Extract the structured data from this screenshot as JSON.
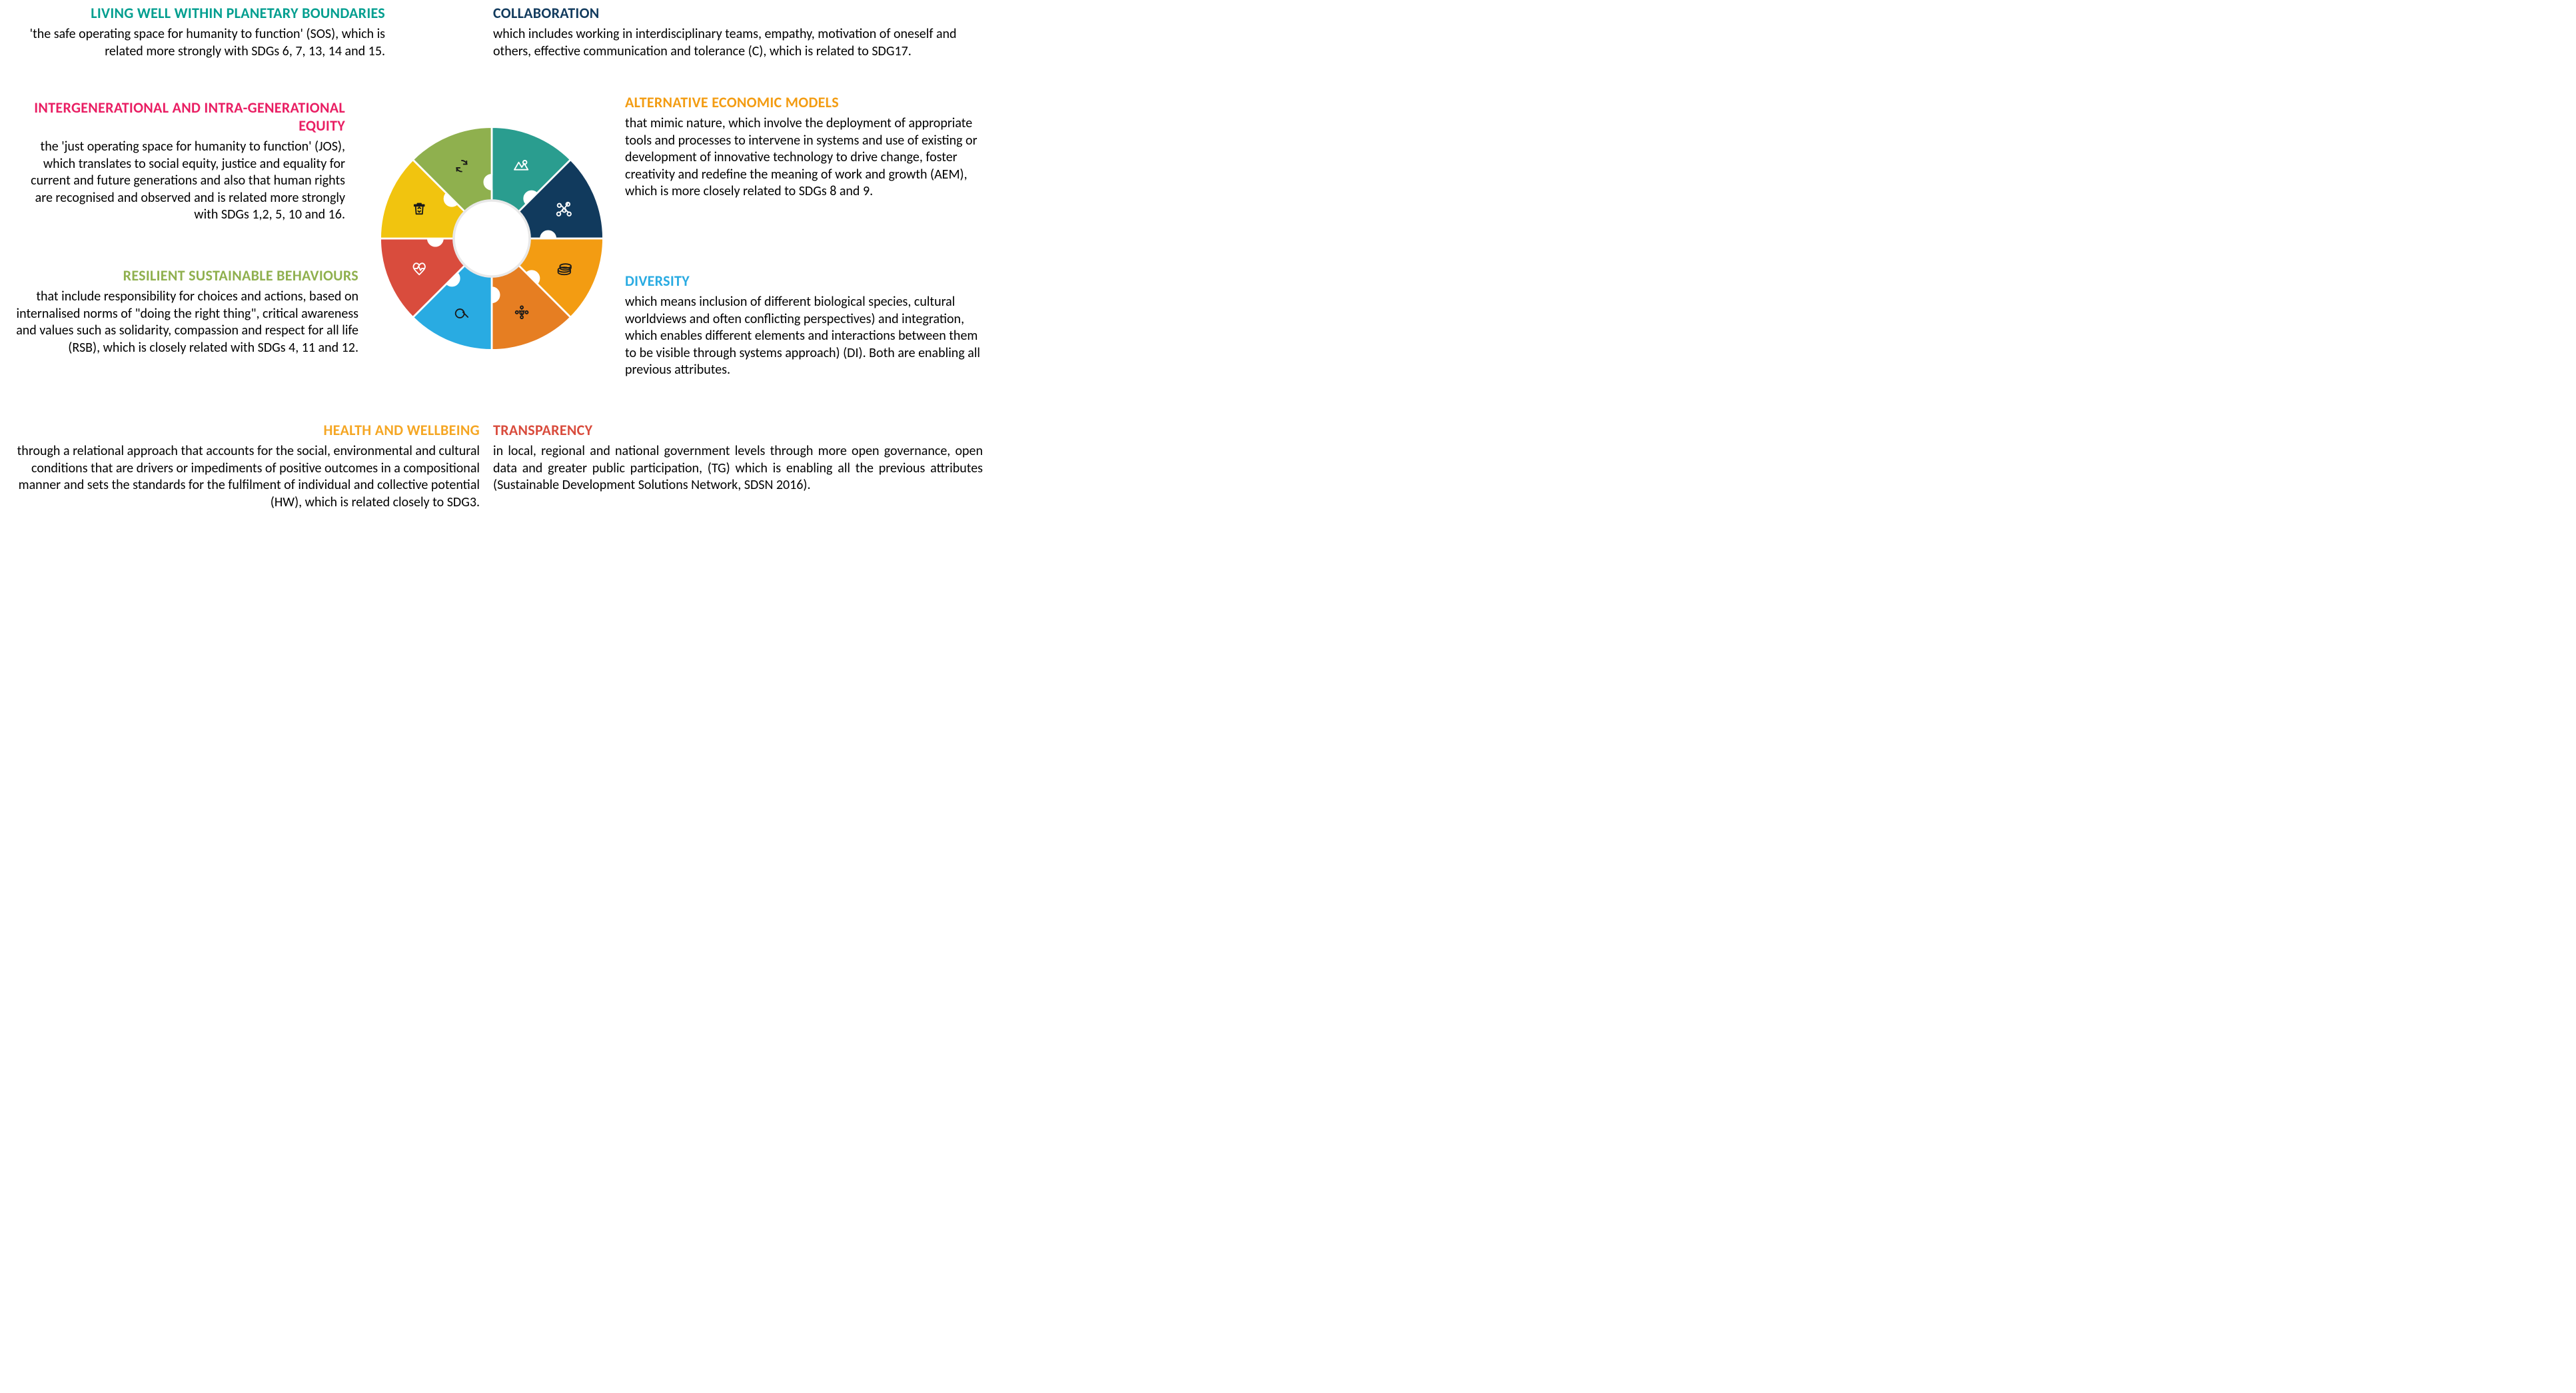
{
  "infographic": {
    "type": "infographic",
    "layout": "radial-puzzle-wheel-with-8-text-blocks",
    "background_color": "#ffffff",
    "body_font_size_pt": 15,
    "title_font_size_pt": 17,
    "title_font_weight": 700,
    "body_color": "#000000"
  },
  "wheel": {
    "segments": 8,
    "inner_radius_ratio": 0.28,
    "colors": [
      "#2a9d8f",
      "#113a5d",
      "#f39c12",
      "#e67e22",
      "#29abe2",
      "#d94c3d",
      "#f1c40f",
      "#8fb04e"
    ],
    "icon_names": [
      "landscape-icon",
      "molecule-icon",
      "coins-icon",
      "people-group-icon",
      "magnifier-icon",
      "heart-pulse-icon",
      "recycle-bin-icon",
      "cycle-arrows-icon"
    ],
    "icon_color_light": "#ffffff",
    "icon_color_dark": "#1a1a1a"
  },
  "blocks": {
    "planetary": {
      "title": "LIVING WELL WITHIN PLANETARY BOUNDARIES",
      "title_color": "#009e8f",
      "body": "'the safe operating space for humanity to function' (SOS), which is related more strongly with SDGs 6, 7, 13, 14 and 15."
    },
    "equity": {
      "title": "INTERGENERATIONAL AND INTRA-GENERATIONAL EQUITY",
      "title_color": "#e91e63",
      "body": "the 'just operating space for humanity to function' (JOS), which translates to social equity, justice and equality for current and future generations and also that human rights are recognised and observed and is related more strongly with SDGs 1,2, 5, 10 and 16."
    },
    "resilient": {
      "title": "RESILIENT SUSTAINABLE BEHAVIOURS",
      "title_color": "#8fb04e",
      "body": "that include responsibility for choices and actions, based on internalised norms of \"doing the right thing\", critical awareness and values such as solidarity, compassion and respect for all life (RSB), which is closely related with SDGs 4, 11 and 12."
    },
    "health": {
      "title": "HEALTH AND WELLBEING",
      "title_color": "#f5a623",
      "body": "through a relational approach that accounts for the social, environmental and cultural conditions that are drivers or impediments of positive outcomes in a compositional manner and sets the standards for the fulfilment of individual and collective potential (HW), which is related closely to SDG3."
    },
    "collaboration": {
      "title": "COLLABORATION",
      "title_color": "#113a5d",
      "body": "which includes working in interdisciplinary teams, empathy, motivation of oneself and others, effective communication and tolerance (C), which is related to SDG17."
    },
    "aem": {
      "title": "ALTERNATIVE ECONOMIC MODELS",
      "title_color": "#f39c12",
      "body": "that mimic nature, which involve the deployment of appropriate tools and processes to intervene in systems and use of existing or development of innovative technology to drive change, foster creativity and redefine the meaning of work and growth (AEM), which is more closely related to SDGs 8 and 9."
    },
    "diversity": {
      "title": "DIVERSITY",
      "title_color": "#29abe2",
      "body": "which means inclusion of different biological species, cultural worldviews and often conflicting perspectives) and integration, which enables different elements and interactions between them to be visible through systems approach) (DI). Both are enabling all previous attributes."
    },
    "transparency": {
      "title": "TRANSPARENCY",
      "title_color": "#d94c3d",
      "body": "in local, regional and national government levels through more open governance, open data and greater public participation, (TG) which is enabling all the previous attributes (Sustainable Development Solutions Network, SDSN 2016)."
    }
  }
}
